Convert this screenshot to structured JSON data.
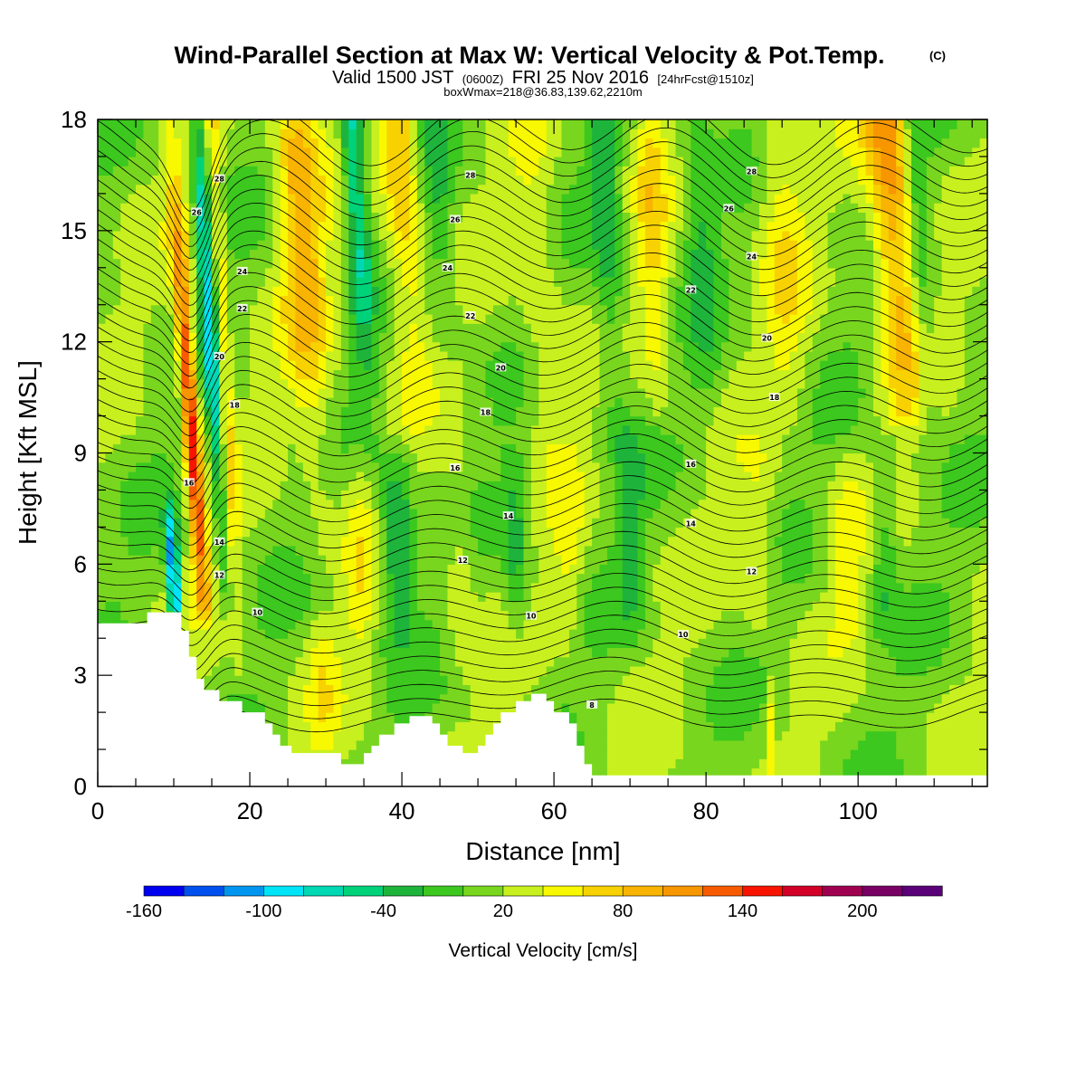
{
  "chart_data": {
    "type": "heatmap",
    "title": "Wind-Parallel Section at Max W: Vertical Velocity & Pot.Temp.",
    "title_mark": "(C)",
    "subtitle_prefix": "Valid 1500 JST",
    "subtitle_utc": "(0600Z)",
    "subtitle_date": "FRI 25 Nov 2016",
    "subtitle_fcst": "[24hrFcst@1510z]",
    "subtitle2": "boxWmax=218@36.83,139.62,2210m",
    "xlabel": "Distance [nm]",
    "ylabel": "Height [Kft MSL]",
    "xlim": [
      0,
      117
    ],
    "ylim": [
      0,
      18
    ],
    "xticks": [
      0,
      20,
      40,
      60,
      80,
      100
    ],
    "yticks": [
      0,
      3,
      6,
      9,
      12,
      15,
      18
    ],
    "colorbar": {
      "title": "Vertical Velocity [cm/s]",
      "min": -160,
      "step": 20,
      "labels": [
        "-160",
        "-100",
        "-40",
        "20",
        "80",
        "140",
        "200"
      ],
      "colors": [
        "#0000f0",
        "#0050f0",
        "#0096f0",
        "#00e4f8",
        "#00d8b4",
        "#00d27a",
        "#1eb43c",
        "#3cc81e",
        "#78d61e",
        "#c8f01e",
        "#f8f800",
        "#f8d200",
        "#f8b400",
        "#f89600",
        "#f85a00",
        "#f81400",
        "#d20028",
        "#a00050",
        "#780064",
        "#5a0078"
      ]
    },
    "terrain_kft": [
      [
        0,
        4.4
      ],
      [
        6.5,
        4.4
      ],
      [
        6.5,
        4.7
      ],
      [
        11,
        4.7
      ],
      [
        11,
        4.2
      ],
      [
        12,
        4.2
      ],
      [
        12,
        3.5
      ],
      [
        13,
        3.5
      ],
      [
        13,
        2.9
      ],
      [
        14,
        2.9
      ],
      [
        14,
        2.6
      ],
      [
        16,
        2.6
      ],
      [
        16,
        2.3
      ],
      [
        19,
        2.3
      ],
      [
        19,
        2.0
      ],
      [
        22,
        2.0
      ],
      [
        22,
        1.7
      ],
      [
        23,
        1.7
      ],
      [
        23,
        1.4
      ],
      [
        24,
        1.4
      ],
      [
        24,
        1.1
      ],
      [
        25.5,
        1.1
      ],
      [
        25.5,
        0.9
      ],
      [
        32,
        0.9
      ],
      [
        32,
        0.6
      ],
      [
        35,
        0.6
      ],
      [
        35,
        0.9
      ],
      [
        36,
        0.9
      ],
      [
        36,
        1.1
      ],
      [
        37,
        1.1
      ],
      [
        37,
        1.4
      ],
      [
        39,
        1.4
      ],
      [
        39,
        1.7
      ],
      [
        41,
        1.7
      ],
      [
        41,
        1.9
      ],
      [
        44,
        1.9
      ],
      [
        44,
        1.7
      ],
      [
        45,
        1.7
      ],
      [
        45,
        1.4
      ],
      [
        46,
        1.4
      ],
      [
        46,
        1.1
      ],
      [
        48,
        1.1
      ],
      [
        48,
        0.9
      ],
      [
        50,
        0.9
      ],
      [
        50,
        1.1
      ],
      [
        51,
        1.1
      ],
      [
        51,
        1.4
      ],
      [
        52,
        1.4
      ],
      [
        52,
        1.7
      ],
      [
        53,
        1.7
      ],
      [
        53,
        2.0
      ],
      [
        55,
        2.0
      ],
      [
        55,
        2.3
      ],
      [
        57,
        2.3
      ],
      [
        57,
        2.5
      ],
      [
        59,
        2.5
      ],
      [
        59,
        2.3
      ],
      [
        60,
        2.3
      ],
      [
        60,
        2.0
      ],
      [
        62,
        2.0
      ],
      [
        62,
        1.7
      ],
      [
        63,
        1.7
      ],
      [
        63,
        1.1
      ],
      [
        64,
        1.1
      ],
      [
        64,
        0.6
      ],
      [
        65,
        0.6
      ],
      [
        65,
        0.3
      ],
      [
        117,
        0.3
      ],
      [
        117,
        0
      ]
    ],
    "w_features": [
      {
        "x": 12.2,
        "y0": 4.8,
        "y1": 18,
        "amp": 150,
        "sx": 1.1,
        "slope": -0.34,
        "peak_y": 10,
        "sy": 4
      },
      {
        "x": 10.0,
        "y0": 4.8,
        "y1": 7.5,
        "amp": -155,
        "sx": 0.8,
        "slope": -0.25,
        "peak_y": 5.5,
        "sy": 1.5
      },
      {
        "x": 14.5,
        "y0": 4.8,
        "y1": 18,
        "amp": -95,
        "sx": 1.0,
        "slope": -0.3,
        "peak_y": 13,
        "sy": 5
      },
      {
        "x": 16.6,
        "y0": 3.0,
        "y1": 18,
        "amp": 50,
        "sx": 0.9,
        "slope": -0.22,
        "peak_y": 12,
        "sy": 6
      },
      {
        "x": 26.5,
        "y0": 6.0,
        "y1": 18,
        "amp": 75,
        "sx": 3.0,
        "slope": -0.3,
        "peak_y": 16,
        "sy": 5
      },
      {
        "x": 33.5,
        "y0": 9.0,
        "y1": 18,
        "amp": -90,
        "sx": 1.5,
        "slope": -0.28,
        "peak_y": 17.5,
        "sy": 4
      },
      {
        "x": 39.5,
        "y0": 10.0,
        "y1": 18,
        "amp": 75,
        "sx": 2.5,
        "slope": -0.3,
        "peak_y": 17.5,
        "sy": 4
      },
      {
        "x": 45.0,
        "y0": 12.0,
        "y1": 18,
        "amp": -30,
        "sx": 2.0,
        "slope": -0.25,
        "peak_y": 15,
        "sy": 3
      },
      {
        "x": 38.5,
        "y0": 0.5,
        "y1": 9.0,
        "amp": -40,
        "sx": 2.0,
        "slope": -0.08,
        "peak_y": 6.5,
        "sy": 2
      },
      {
        "x": 34.5,
        "y0": 0.5,
        "y1": 9.0,
        "amp": 30,
        "sx": 2.0,
        "slope": -0.08,
        "peak_y": 6,
        "sy": 2
      },
      {
        "x": 58.0,
        "y0": 9.0,
        "y1": 18,
        "amp": 30,
        "sx": 3.0,
        "slope": -0.25,
        "peak_y": 14,
        "sy": 4
      },
      {
        "x": 67.0,
        "y0": 9.0,
        "y1": 18,
        "amp": -45,
        "sx": 2.0,
        "slope": -0.22,
        "peak_y": 15,
        "sy": 4
      },
      {
        "x": 73.0,
        "y0": 10.0,
        "y1": 18,
        "amp": 45,
        "sx": 2.0,
        "slope": -0.2,
        "peak_y": 15,
        "sy": 4
      },
      {
        "x": 79.0,
        "y0": 10.0,
        "y1": 18,
        "amp": -35,
        "sx": 2.0,
        "slope": -0.2,
        "peak_y": 16,
        "sy": 4
      },
      {
        "x": 90.0,
        "y0": 10.0,
        "y1": 18,
        "amp": 35,
        "sx": 3.0,
        "slope": -0.25,
        "peak_y": 15,
        "sy": 4
      },
      {
        "x": 104.0,
        "y0": 10.0,
        "y1": 18,
        "amp": 100,
        "sx": 3.0,
        "slope": -0.3,
        "peak_y": 17,
        "sy": 5
      },
      {
        "x": 108.0,
        "y0": 10.0,
        "y1": 18,
        "amp": -40,
        "sx": 1.5,
        "slope": -0.25,
        "peak_y": 15,
        "sy": 4
      },
      {
        "x": 40.0,
        "y0": 4.0,
        "y1": 9.0,
        "amp": -45,
        "sx": 1.7,
        "slope": -0.05,
        "peak_y": 6.5,
        "sy": 1.8
      },
      {
        "x": 47.5,
        "y0": 3.0,
        "y1": 9.0,
        "amp": 30,
        "sx": 2.0,
        "slope": -0.05,
        "peak_y": 6,
        "sy": 2
      },
      {
        "x": 55.0,
        "y0": 3.0,
        "y1": 9.0,
        "amp": -45,
        "sx": 1.7,
        "slope": -0.05,
        "peak_y": 6.5,
        "sy": 2
      },
      {
        "x": 62.0,
        "y0": 3.0,
        "y1": 9.0,
        "amp": 30,
        "sx": 2.0,
        "slope": -0.05,
        "peak_y": 6,
        "sy": 2
      },
      {
        "x": 70.0,
        "y0": 4.0,
        "y1": 9.5,
        "amp": -40,
        "sx": 1.7,
        "slope": -0.05,
        "peak_y": 7,
        "sy": 2
      },
      {
        "x": 87.0,
        "y0": 4.0,
        "y1": 9.0,
        "amp": 30,
        "sx": 2.5,
        "slope": -0.05,
        "peak_y": 6.3,
        "sy": 2
      },
      {
        "x": 98.5,
        "y0": 4.0,
        "y1": 9.0,
        "amp": 30,
        "sx": 2.0,
        "slope": -0.05,
        "peak_y": 6.5,
        "sy": 2
      },
      {
        "x": 103.5,
        "y0": 4.0,
        "y1": 9.0,
        "amp": -40,
        "sx": 1.7,
        "slope": -0.05,
        "peak_y": 6.5,
        "sy": 2
      },
      {
        "x": 88.5,
        "y0": 0.3,
        "y1": 3.0,
        "amp": 45,
        "sx": 0.6,
        "slope": 0.0,
        "peak_y": 1.5,
        "sy": 1
      },
      {
        "x": 29.5,
        "y0": 0.5,
        "y1": 4.5,
        "amp": 30,
        "sx": 2.0,
        "slope": -0.1,
        "peak_y": 3,
        "sy": 1.5
      }
    ],
    "theta_contours": [
      8,
      10,
      12,
      14,
      16,
      18,
      20,
      22,
      24,
      26,
      28
    ],
    "contour_labels": [
      {
        "text": "28",
        "x": 16.0,
        "y": 16.4
      },
      {
        "text": "26",
        "x": 13.0,
        "y": 15.5
      },
      {
        "text": "24",
        "x": 19.0,
        "y": 13.9
      },
      {
        "text": "22",
        "x": 19.0,
        "y": 12.9
      },
      {
        "text": "20",
        "x": 16.0,
        "y": 11.6
      },
      {
        "text": "18",
        "x": 18.0,
        "y": 10.3
      },
      {
        "text": "16",
        "x": 12.0,
        "y": 8.2
      },
      {
        "text": "14",
        "x": 16.0,
        "y": 6.6
      },
      {
        "text": "12",
        "x": 16.0,
        "y": 5.7
      },
      {
        "text": "10",
        "x": 21.0,
        "y": 4.7
      },
      {
        "text": "28",
        "x": 49.0,
        "y": 16.5
      },
      {
        "text": "26",
        "x": 47.0,
        "y": 15.3
      },
      {
        "text": "24",
        "x": 46.0,
        "y": 14.0
      },
      {
        "text": "22",
        "x": 49.0,
        "y": 12.7
      },
      {
        "text": "20",
        "x": 53.0,
        "y": 11.3
      },
      {
        "text": "18",
        "x": 51.0,
        "y": 10.1
      },
      {
        "text": "16",
        "x": 47.0,
        "y": 8.6
      },
      {
        "text": "14",
        "x": 54.0,
        "y": 7.3
      },
      {
        "text": "12",
        "x": 48.0,
        "y": 6.1
      },
      {
        "text": "10",
        "x": 57.0,
        "y": 4.6
      },
      {
        "text": "8",
        "x": 65.0,
        "y": 2.2
      },
      {
        "text": "28",
        "x": 86.0,
        "y": 16.6
      },
      {
        "text": "26",
        "x": 83.0,
        "y": 15.6
      },
      {
        "text": "24",
        "x": 86.0,
        "y": 14.3
      },
      {
        "text": "22",
        "x": 78.0,
        "y": 13.4
      },
      {
        "text": "20",
        "x": 88.0,
        "y": 12.1
      },
      {
        "text": "18",
        "x": 89.0,
        "y": 10.5
      },
      {
        "text": "16",
        "x": 78.0,
        "y": 8.7
      },
      {
        "text": "14",
        "x": 78.0,
        "y": 7.1
      },
      {
        "text": "12",
        "x": 86.0,
        "y": 5.8
      },
      {
        "text": "10",
        "x": 77.0,
        "y": 4.1
      }
    ]
  }
}
